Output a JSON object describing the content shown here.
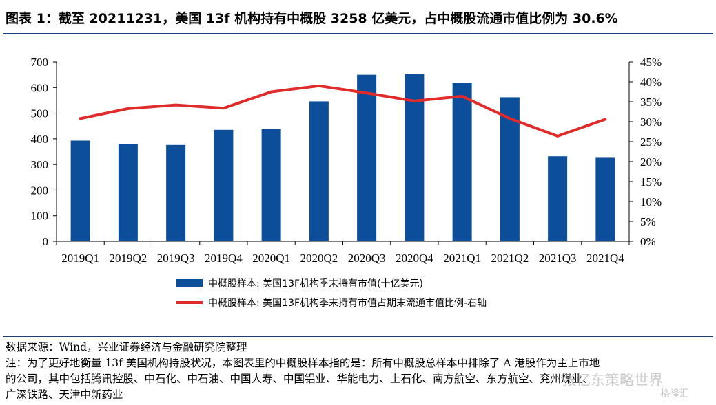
{
  "title": "图表 1：截至 20211231，美国 13f 机构持有中概股 3258 亿美元，占中概股流通市值比例为 30.6%",
  "colors": {
    "bar": "#0d4e9a",
    "line": "#e02b2b",
    "rule": "#1f3e75"
  },
  "chart_data": {
    "type": "bar",
    "categories": [
      "2019Q1",
      "2019Q2",
      "2019Q3",
      "2019Q4",
      "2020Q1",
      "2020Q2",
      "2020Q3",
      "2020Q4",
      "2021Q1",
      "2021Q2",
      "2021Q3",
      "2021Q4"
    ],
    "series": [
      {
        "name": "中概股样本: 美国13F机构季末持有市值(十亿美元)",
        "type": "bar",
        "axis": "left",
        "values": [
          393,
          380,
          376,
          435,
          438,
          546,
          650,
          653,
          617,
          562,
          332,
          326
        ]
      },
      {
        "name": "中概股样本: 美国13F机构季末持有市值占期末流通市值比例-右轴",
        "type": "line",
        "axis": "right",
        "values": [
          30.8,
          33.3,
          34.2,
          33.4,
          37.5,
          39.0,
          37.2,
          35.2,
          36.4,
          30.8,
          26.4,
          30.6
        ]
      }
    ],
    "left_axis": {
      "min": 0,
      "max": 700,
      "step": 100,
      "ticks": [
        "0",
        "100",
        "200",
        "300",
        "400",
        "500",
        "600",
        "700"
      ]
    },
    "right_axis": {
      "min": 0,
      "max": 45,
      "step": 5,
      "ticks": [
        "0%",
        "5%",
        "10%",
        "15%",
        "20%",
        "25%",
        "30%",
        "35%",
        "40%",
        "45%"
      ]
    },
    "legend_position": "bottom",
    "grid": false
  },
  "footer": {
    "source": "数据来源：Wind，兴业证券经济与金融研究院整理",
    "note_line1": "注：为了更好地衡量 13f 美国机构持股状况，本图表里的中概股样本指的是：所有中概股总样本中排除了 A 港股作为主上市地",
    "note_line2": "的公司，其中包括腾讯控股、中石化、中石油、中国人寿、中国铝业、华能电力、上石化、南方航空、东方航空、兖州煤业、",
    "note_line3": "广深铁路、天津中新药业"
  },
  "watermark": "张忆东策略世界",
  "watermark2": "格隆汇"
}
